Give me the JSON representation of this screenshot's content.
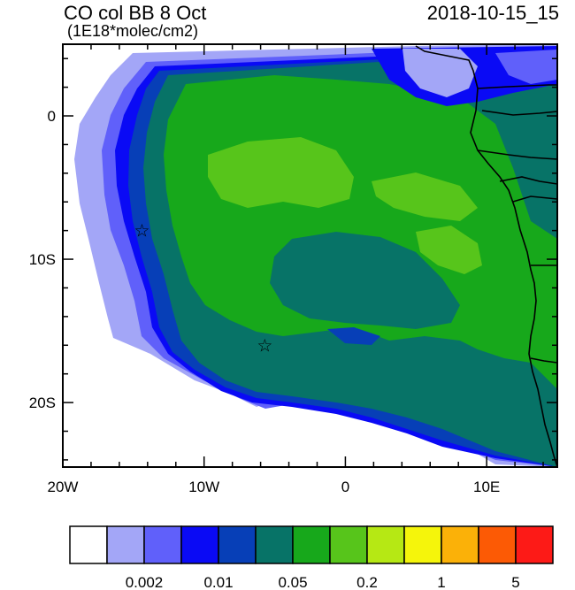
{
  "header": {
    "title": "CO col BB 8 Oct",
    "units": "(1E18*molec/cm2)",
    "timestamp": "2018-10-15_15"
  },
  "map": {
    "lon_range": [
      -20,
      15
    ],
    "lat_range": [
      -24.5,
      5
    ],
    "x_ticks": [
      {
        "value": -20,
        "label": "20W"
      },
      {
        "value": -10,
        "label": "10W"
      },
      {
        "value": 0,
        "label": "0"
      },
      {
        "value": 10,
        "label": "10E"
      }
    ],
    "y_ticks": [
      {
        "value": 0,
        "label": "0"
      },
      {
        "value": -10,
        "label": "10S"
      },
      {
        "value": -20,
        "label": "20S"
      }
    ],
    "markers": [
      {
        "name": "star-marker-ascension",
        "lon": -14.4,
        "lat": -8.0,
        "symbol": "☆"
      },
      {
        "name": "star-marker-st-helena",
        "lon": -5.7,
        "lat": -16.0,
        "symbol": "☆"
      }
    ]
  },
  "colorbar": {
    "colors": [
      "#ffffff",
      "#a3a6f7",
      "#6060fa",
      "#0a0af5",
      "#073fb7",
      "#077367",
      "#17a81b",
      "#57c51b",
      "#b6e814",
      "#f5f50b",
      "#fbb108",
      "#fc5a05",
      "#fd1a17"
    ],
    "labels": [
      {
        "text": "0.002",
        "after_index": 2
      },
      {
        "text": "0.01",
        "after_index": 4
      },
      {
        "text": "0.05",
        "after_index": 6
      },
      {
        "text": "0.2",
        "after_index": 8
      },
      {
        "text": "1",
        "after_index": 10
      },
      {
        "text": "5",
        "after_index": 12
      }
    ]
  },
  "colors": {
    "ocean_bg": "#ffffff",
    "frame": "#000000"
  }
}
